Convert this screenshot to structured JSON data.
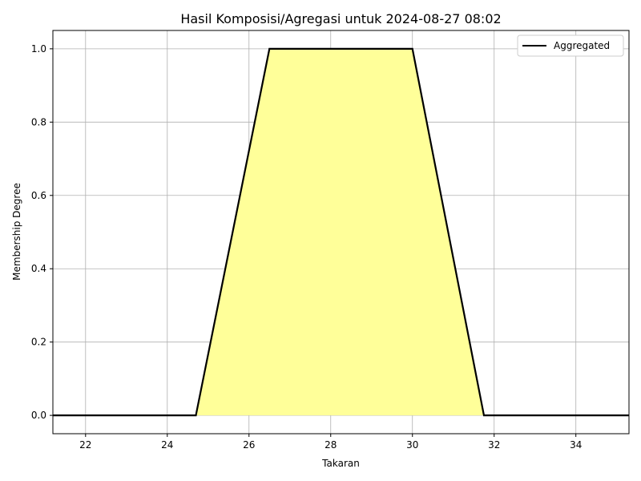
{
  "chart_data": {
    "type": "area",
    "title": "Hasil Komposisi/Agregasi untuk 2024-08-27 08:02",
    "xlabel": "Takaran",
    "ylabel": "Membership Degree",
    "xlim": [
      21.2,
      35.3
    ],
    "ylim": [
      -0.05,
      1.05
    ],
    "xticks": [
      22,
      24,
      26,
      28,
      30,
      32,
      34
    ],
    "yticks": [
      0.0,
      0.2,
      0.4,
      0.6,
      0.8,
      1.0
    ],
    "xtick_labels": [
      "22",
      "24",
      "26",
      "28",
      "30",
      "32",
      "34"
    ],
    "ytick_labels": [
      "0.0",
      "0.2",
      "0.4",
      "0.6",
      "0.8",
      "1.0"
    ],
    "grid": true,
    "legend_position": "top-right",
    "series": [
      {
        "name": "Aggregated",
        "color": "#000000",
        "fill_color": "#ffff99",
        "x": [
          21.2,
          24.7,
          26.5,
          30.0,
          31.75,
          35.3
        ],
        "y": [
          0.0,
          0.0,
          1.0,
          1.0,
          0.0,
          0.0
        ]
      }
    ]
  }
}
